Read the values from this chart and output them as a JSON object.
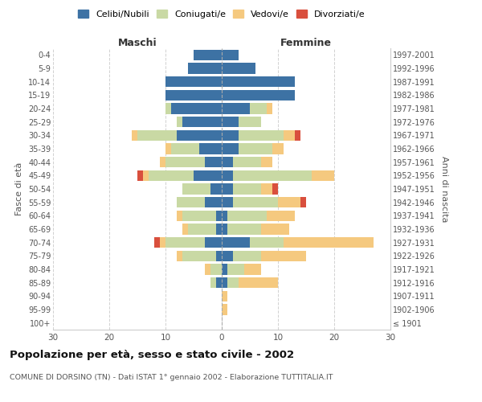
{
  "age_groups": [
    "100+",
    "95-99",
    "90-94",
    "85-89",
    "80-84",
    "75-79",
    "70-74",
    "65-69",
    "60-64",
    "55-59",
    "50-54",
    "45-49",
    "40-44",
    "35-39",
    "30-34",
    "25-29",
    "20-24",
    "15-19",
    "10-14",
    "5-9",
    "0-4"
  ],
  "birth_years": [
    "≤ 1901",
    "1902-1906",
    "1907-1911",
    "1912-1916",
    "1917-1921",
    "1922-1926",
    "1927-1931",
    "1932-1936",
    "1937-1941",
    "1942-1946",
    "1947-1951",
    "1952-1956",
    "1957-1961",
    "1962-1966",
    "1967-1971",
    "1972-1976",
    "1977-1981",
    "1982-1986",
    "1987-1991",
    "1992-1996",
    "1997-2001"
  ],
  "males": {
    "celibi": [
      0,
      0,
      0,
      1,
      0,
      1,
      3,
      1,
      1,
      3,
      2,
      5,
      3,
      4,
      8,
      7,
      9,
      10,
      10,
      6,
      5
    ],
    "coniugati": [
      0,
      0,
      0,
      1,
      2,
      6,
      7,
      5,
      6,
      5,
      5,
      8,
      7,
      5,
      7,
      1,
      1,
      0,
      0,
      0,
      0
    ],
    "vedovi": [
      0,
      0,
      0,
      0,
      1,
      1,
      1,
      1,
      1,
      0,
      0,
      1,
      1,
      1,
      1,
      0,
      0,
      0,
      0,
      0,
      0
    ],
    "divorziati": [
      0,
      0,
      0,
      0,
      0,
      0,
      1,
      0,
      0,
      0,
      0,
      1,
      0,
      0,
      0,
      0,
      0,
      0,
      0,
      0,
      0
    ]
  },
  "females": {
    "nubili": [
      0,
      0,
      0,
      1,
      1,
      2,
      5,
      1,
      1,
      2,
      2,
      2,
      2,
      3,
      3,
      3,
      5,
      13,
      13,
      6,
      3
    ],
    "coniugate": [
      0,
      0,
      0,
      2,
      3,
      5,
      6,
      6,
      7,
      8,
      5,
      14,
      5,
      6,
      8,
      4,
      3,
      0,
      0,
      0,
      0
    ],
    "vedove": [
      0,
      1,
      1,
      7,
      3,
      8,
      16,
      5,
      5,
      4,
      2,
      4,
      2,
      2,
      2,
      0,
      1,
      0,
      0,
      0,
      0
    ],
    "divorziate": [
      0,
      0,
      0,
      0,
      0,
      0,
      0,
      0,
      0,
      1,
      1,
      0,
      0,
      0,
      1,
      0,
      0,
      0,
      0,
      0,
      0
    ]
  },
  "colors": {
    "celibi": "#3d72a4",
    "coniugati": "#c9d9a4",
    "vedovi": "#f5c97f",
    "divorziati": "#d94f3d"
  },
  "title": "Popolazione per età, sesso e stato civile - 2002",
  "subtitle": "COMUNE DI DORSINO (TN) - Dati ISTAT 1° gennaio 2002 - Elaborazione TUTTITALIA.IT",
  "xlabel_left": "Maschi",
  "xlabel_right": "Femmine",
  "ylabel_left": "Fasce di età",
  "ylabel_right": "Anni di nascita",
  "xlim": 30,
  "legend_labels": [
    "Celibi/Nubili",
    "Coniugati/e",
    "Vedovi/e",
    "Divorziati/e"
  ]
}
